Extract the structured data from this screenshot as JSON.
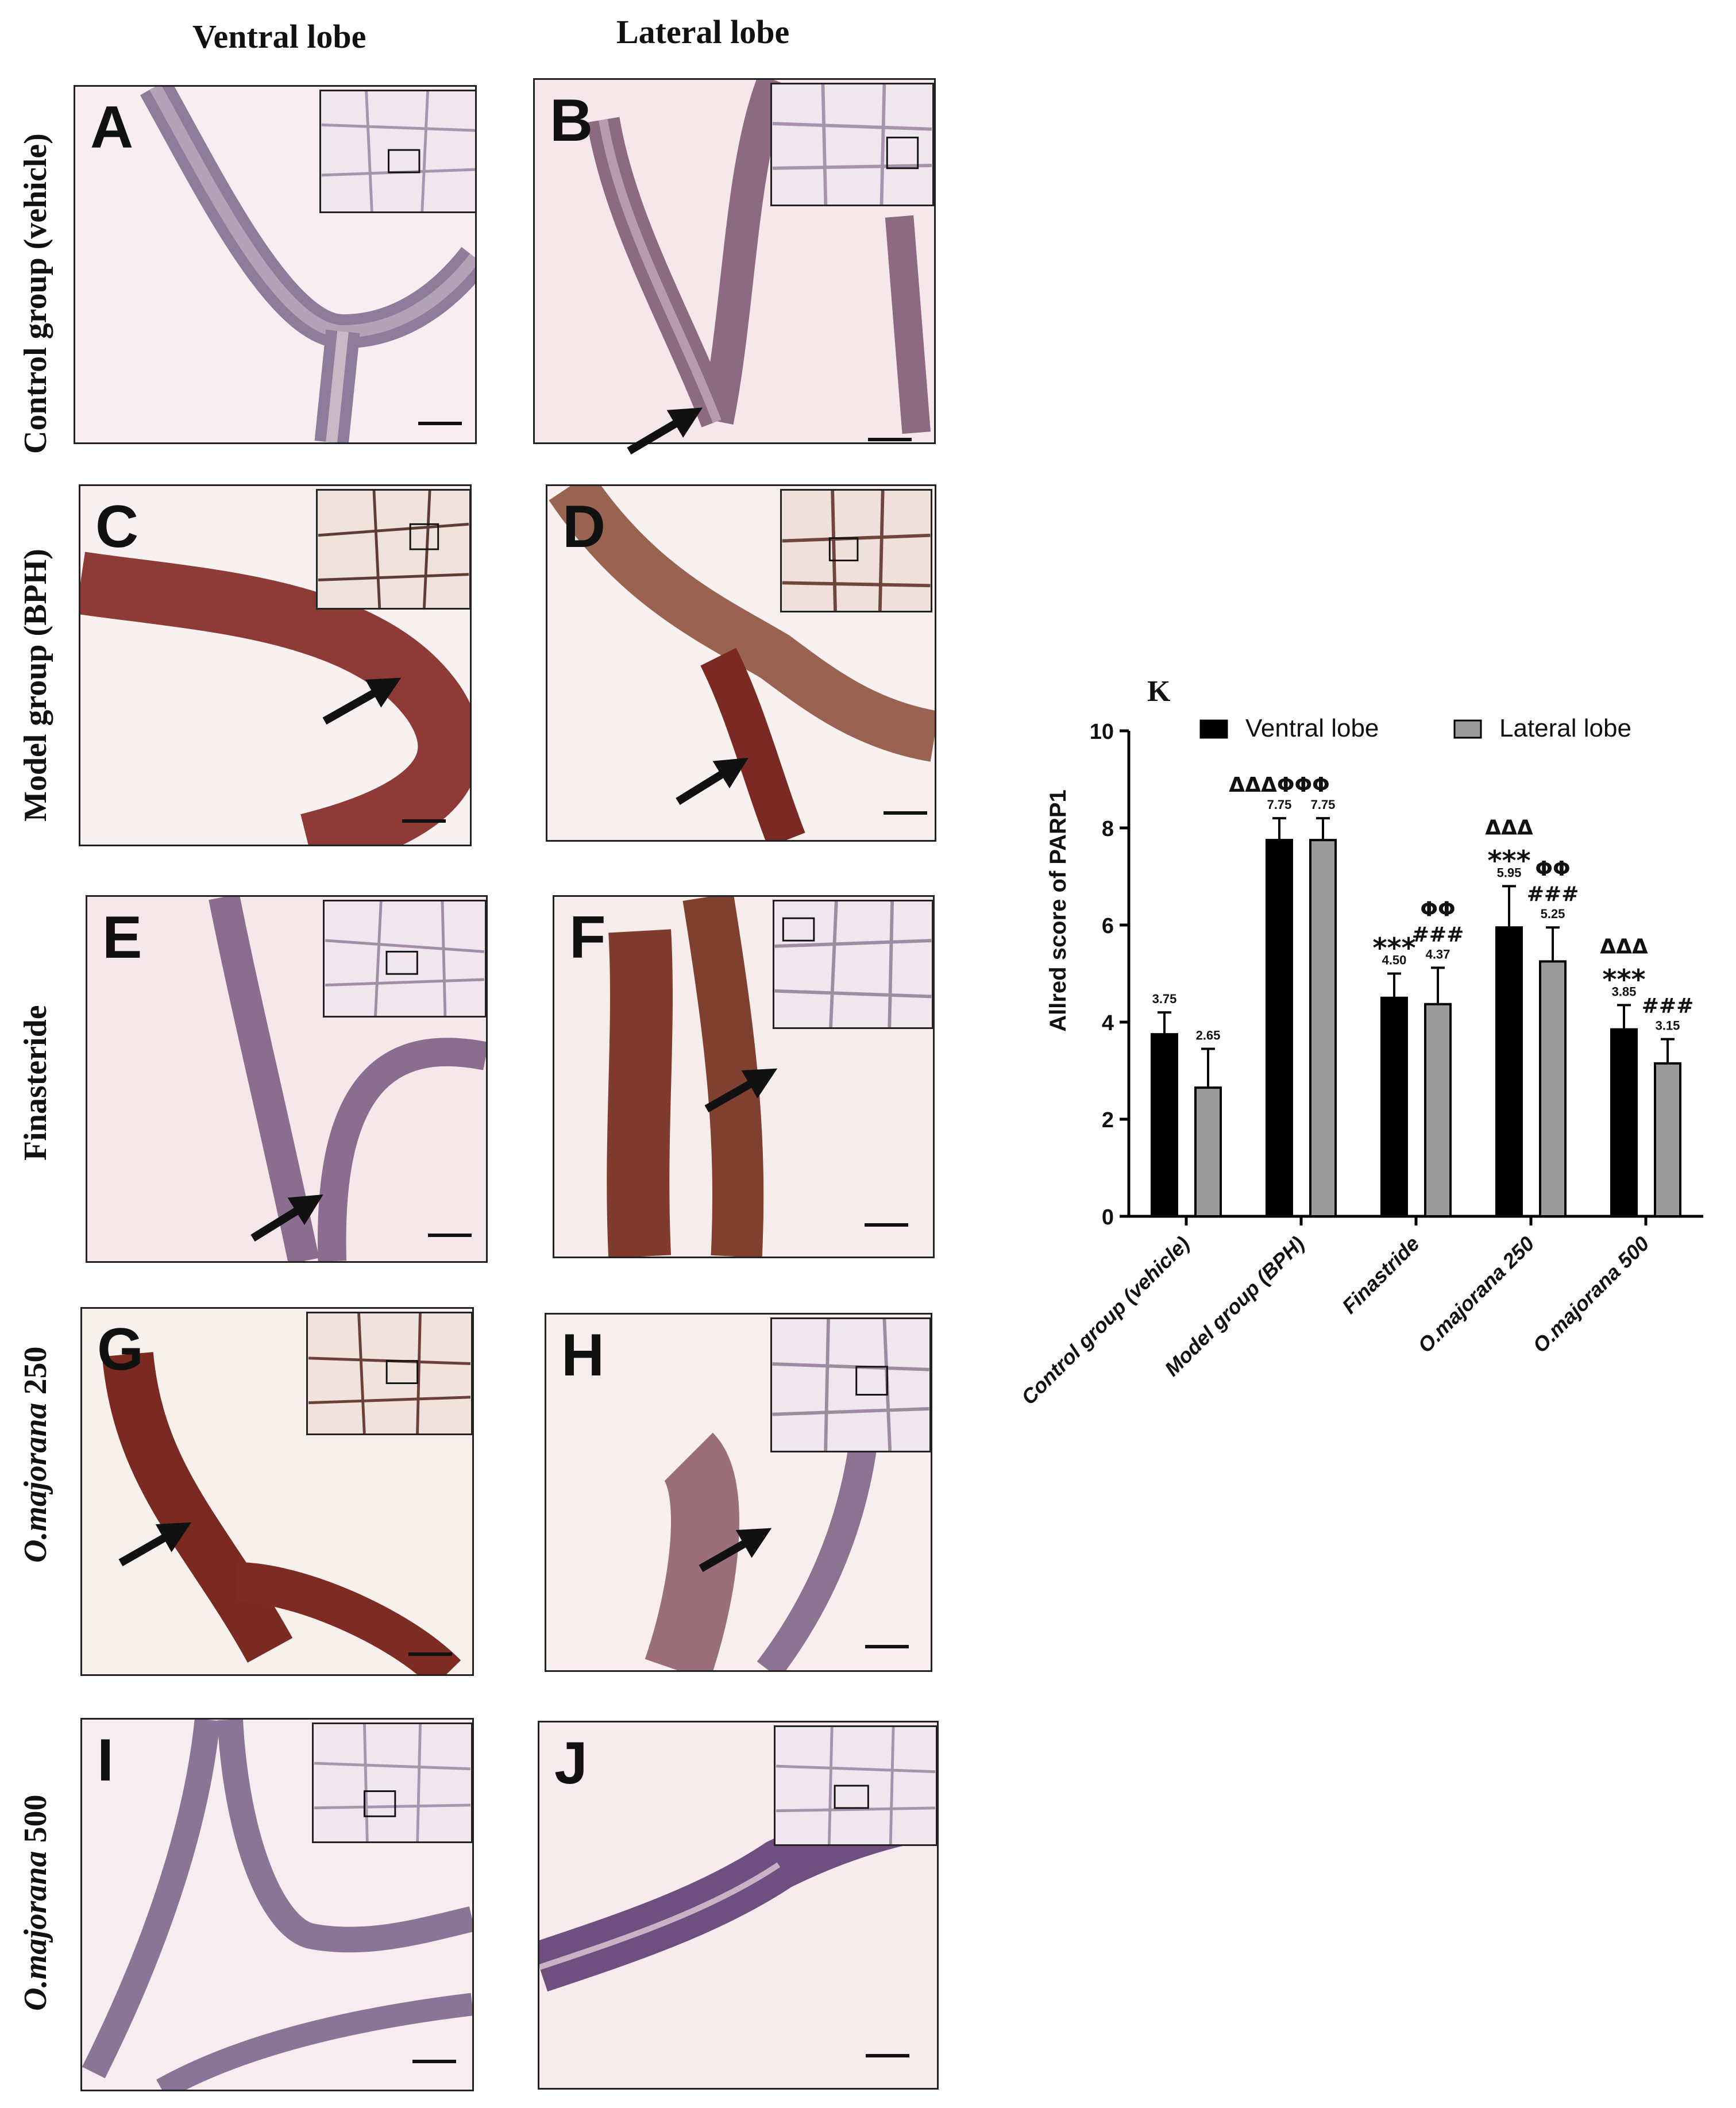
{
  "columns": {
    "ventral": "Ventral lobe",
    "lateral": "Lateral lobe"
  },
  "rows": [
    {
      "label": "Control group (vehicle)",
      "italic_part": ""
    },
    {
      "label": "Model group (BPH)",
      "italic_part": ""
    },
    {
      "label": "Finasteride",
      "italic_part": ""
    },
    {
      "label": " 250",
      "italic_part": "O.majorana"
    },
    {
      "label": " 500",
      "italic_part": "O.majorana"
    }
  ],
  "panels": [
    "A",
    "B",
    "C",
    "D",
    "E",
    "F",
    "G",
    "H",
    "I",
    "J"
  ],
  "chart_data": {
    "type": "bar",
    "panel_letter": "K",
    "ylabel": "Allred score of PARP1",
    "ylim": [
      0,
      10
    ],
    "yticks": [
      "0",
      "2",
      "4",
      "6",
      "8",
      "10"
    ],
    "categories": [
      "Control group (vehicle)",
      "Model group (BPH)",
      "Finastride",
      "O.majorana 250",
      "O.majorana 500"
    ],
    "series": [
      {
        "name": "Ventral lobe",
        "color": "#000000",
        "values": [
          3.75,
          7.75,
          4.5,
          5.95,
          3.85
        ],
        "errors": [
          0.45,
          0.45,
          0.5,
          0.85,
          0.5
        ],
        "value_labels": [
          "3.75",
          "7.75",
          "4.50",
          "5.95",
          "3.85"
        ]
      },
      {
        "name": "Lateral lobe",
        "color": "#9a9a9a",
        "values": [
          2.65,
          7.75,
          4.37,
          5.25,
          3.15
        ],
        "errors": [
          0.8,
          0.45,
          0.75,
          0.7,
          0.5
        ],
        "value_labels": [
          "2.65",
          "7.75",
          "4.37",
          "5.25",
          "3.15"
        ]
      }
    ],
    "annotations": [
      {
        "category": 1,
        "series": 0,
        "lines": [
          "ΔΔΔΦΦΦ"
        ]
      },
      {
        "category": 2,
        "series": 0,
        "lines": [
          "***"
        ]
      },
      {
        "category": 2,
        "series": 1,
        "lines": [
          "ΦΦ",
          "###"
        ]
      },
      {
        "category": 3,
        "series": 0,
        "lines": [
          "ΔΔΔ",
          "***"
        ]
      },
      {
        "category": 3,
        "series": 1,
        "lines": [
          "ΦΦ",
          "###"
        ]
      },
      {
        "category": 4,
        "series": 0,
        "lines": [
          "ΔΔΔ",
          "***"
        ]
      },
      {
        "category": 4,
        "series": 1,
        "lines": [
          "###"
        ]
      }
    ],
    "legend_position": "top",
    "grid": false
  }
}
